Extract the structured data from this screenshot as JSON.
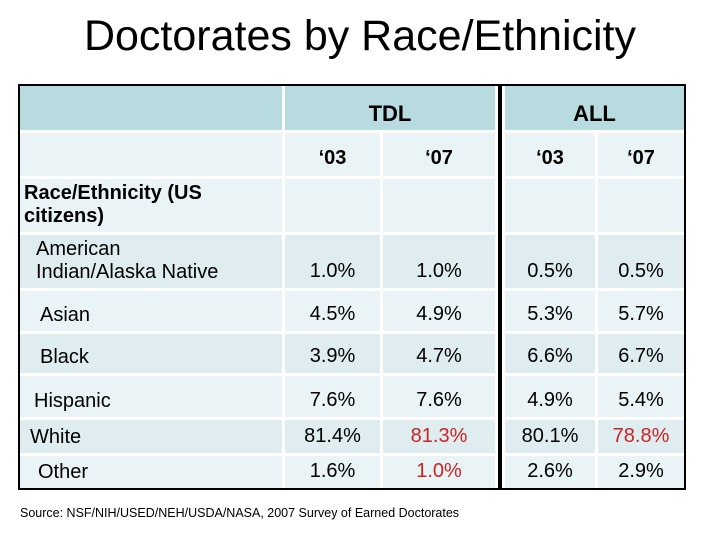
{
  "title": "Doctorates by Race/Ethnicity",
  "colors": {
    "header_teal": "#b7dbdf",
    "row_light": "#eaf3f5",
    "row_dark": "#dfedf0",
    "highlight_red": "#cc2222"
  },
  "table": {
    "column_groups": [
      "TDL",
      "ALL"
    ],
    "year_headers": [
      "‘03",
      "‘07"
    ],
    "rows": [
      {
        "label": "Race/Ethnicity (US\ncitizens)",
        "bold": true,
        "values": [
          "",
          "",
          "",
          ""
        ]
      },
      {
        "label": "American\nIndian/Alaska Native",
        "values": [
          "1.0%",
          "1.0%",
          "0.5%",
          "0.5%"
        ]
      },
      {
        "label": "Asian",
        "values": [
          "4.5%",
          "4.9%",
          "5.3%",
          "5.7%"
        ]
      },
      {
        "label": "Black",
        "values": [
          "3.9%",
          "4.7%",
          "6.6%",
          "6.7%"
        ]
      },
      {
        "label": "Hispanic",
        "values": [
          "7.6%",
          "7.6%",
          "4.9%",
          "5.4%"
        ]
      },
      {
        "label": "White",
        "values": [
          "81.4%",
          "81.3%",
          "80.1%",
          "78.8%"
        ],
        "red_value_indices": [
          1,
          3
        ]
      },
      {
        "label": "Other",
        "values": [
          "1.6%",
          "1.0%",
          "2.6%",
          "2.9%"
        ],
        "red_value_indices": [
          1
        ]
      }
    ]
  },
  "source": "Source: NSF/NIH/USED/NEH/USDA/NASA, 2007 Survey of Earned Doctorates"
}
